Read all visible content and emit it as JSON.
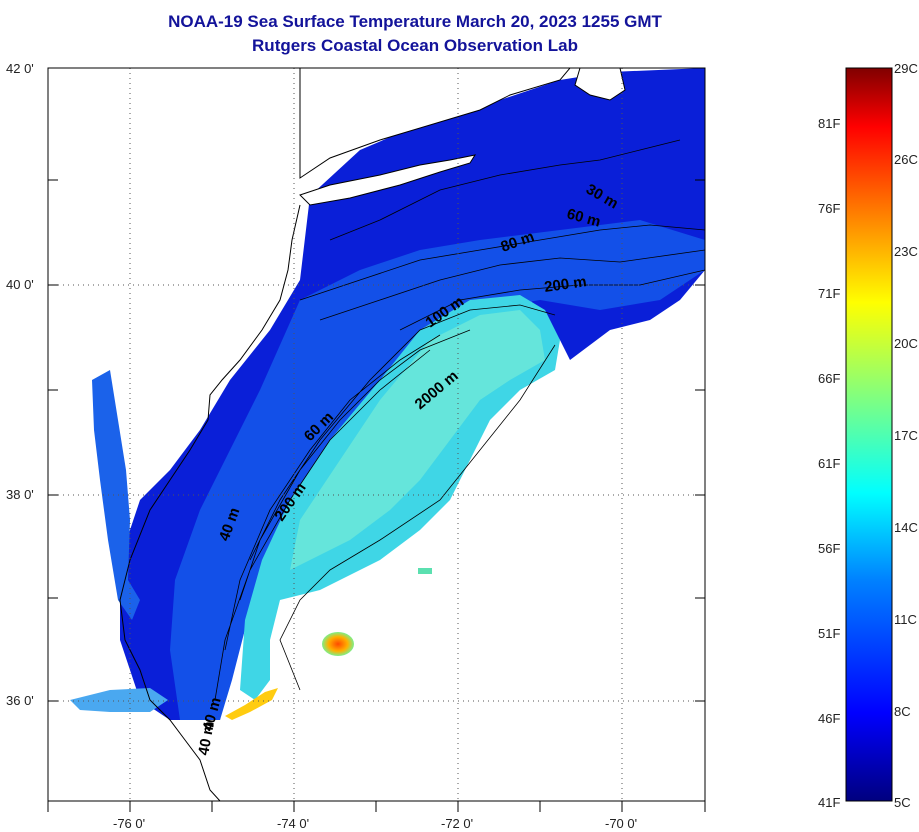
{
  "title_line1": "NOAA-19 Sea Surface Temperature March 20, 2023 1255 GMT",
  "title_line2": "Rutgers Coastal Ocean Observation Lab",
  "lat_labels": [
    "42 0'",
    "40 0'",
    "38 0'",
    "36 0'"
  ],
  "lon_labels": [
    "-76 0'",
    "-74 0'",
    "-72 0'",
    "-70 0'"
  ],
  "contour_labels": [
    "30 m",
    "60 m",
    "80 m",
    "200 m",
    "100 m",
    "2000 m",
    "60 m",
    "200 m",
    "40 m",
    "40 m",
    "40 m"
  ],
  "colorbar": {
    "fahrenheit": [
      "81F",
      "76F",
      "71F",
      "66F",
      "61F",
      "56F",
      "51F",
      "46F",
      "41F"
    ],
    "celsius": [
      "29C",
      "26C",
      "23C",
      "20C",
      "17C",
      "14C",
      "11C",
      "8C",
      "5C"
    ]
  },
  "colors": {
    "title": "#13139a",
    "cold": "#0a1fd8",
    "shelf": "#1350e8",
    "warm_band": "#3fd6e6",
    "warm_core": "#ff7a10"
  }
}
